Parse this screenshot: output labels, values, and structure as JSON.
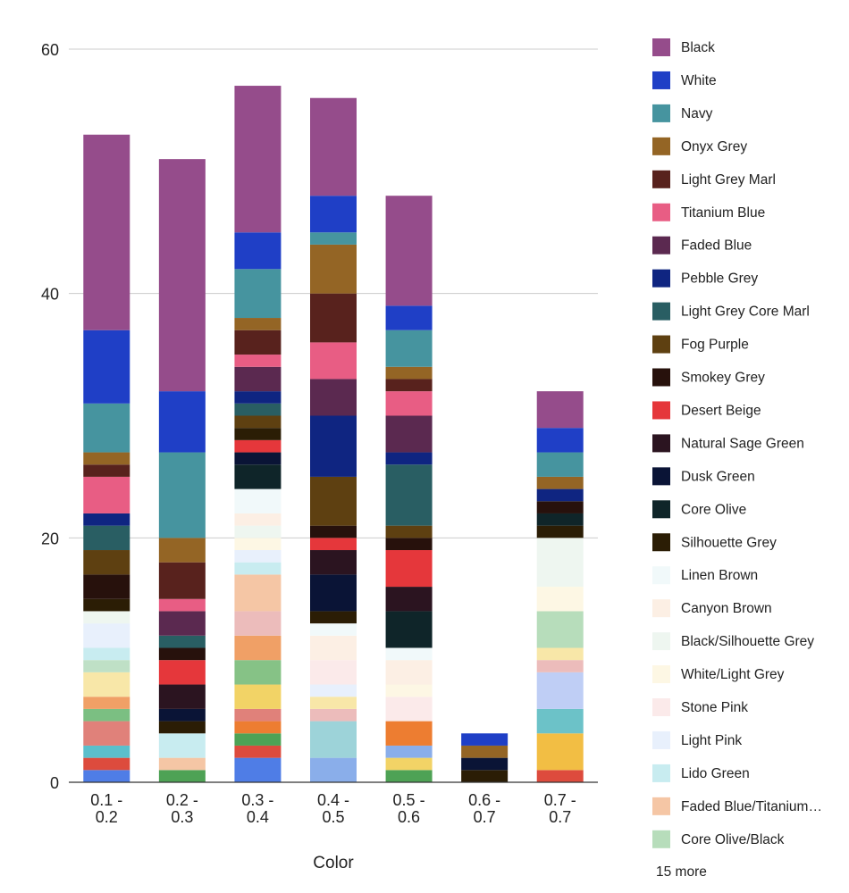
{
  "chart_data": {
    "type": "bar",
    "stacked": true,
    "xlabel": "Color",
    "ylabel": "",
    "ylim": [
      0,
      60
    ],
    "yticks": [
      0,
      20,
      40,
      60
    ],
    "grid": true,
    "legend_position": "right",
    "categories": [
      [
        "0.1 -",
        "0.2"
      ],
      [
        "0.2 -",
        "0.3"
      ],
      [
        "0.3 -",
        "0.4"
      ],
      [
        "0.4 -",
        "0.5"
      ],
      [
        "0.5 -",
        "0.6"
      ],
      [
        "0.6 -",
        "0.7"
      ],
      [
        "0.7 -",
        "0.7"
      ]
    ],
    "segments": [
      [
        {
          "c": "#4f7de6",
          "v": 1
        },
        {
          "c": "#dd4b3d",
          "v": 1
        },
        {
          "c": "#5bbfcc",
          "v": 1
        },
        {
          "c": "#e0817a",
          "v": 2
        },
        {
          "c": "#7bbf82",
          "v": 1
        },
        {
          "c": "#f0a066",
          "v": 1
        },
        {
          "c": "#f8e7a8",
          "v": 2
        },
        {
          "c": "#bfe0c6",
          "v": 1
        },
        {
          "c": "#c8ecf0",
          "v": 1
        },
        {
          "c": "#e8f0fc",
          "v": 2
        },
        {
          "c": "#eef6f0",
          "v": 1
        },
        {
          "c": "#2b1d05",
          "v": 1
        },
        {
          "c": "#27110c",
          "v": 2
        },
        {
          "c": "#5e4011",
          "v": 2
        },
        {
          "c": "#295e63",
          "v": 2
        },
        {
          "c": "#0f2581",
          "v": 1
        },
        {
          "c": "#e85d84",
          "v": 3
        },
        {
          "c": "#58221d",
          "v": 1
        },
        {
          "c": "#946525",
          "v": 1
        },
        {
          "c": "#46949f",
          "v": 4
        },
        {
          "c": "#1f3fc6",
          "v": 6
        },
        {
          "c": "#954c8b",
          "v": 16
        }
      ],
      [
        {
          "c": "#4ea255",
          "v": 1
        },
        {
          "c": "#f5c6a5",
          "v": 1
        },
        {
          "c": "#c8ecf0",
          "v": 2
        },
        {
          "c": "#2b1d05",
          "v": 1
        },
        {
          "c": "#0a1436",
          "v": 1
        },
        {
          "c": "#2b1420",
          "v": 2
        },
        {
          "c": "#e5373b",
          "v": 2
        },
        {
          "c": "#27110c",
          "v": 1
        },
        {
          "c": "#295e63",
          "v": 1
        },
        {
          "c": "#5b2950",
          "v": 2
        },
        {
          "c": "#e85d84",
          "v": 1
        },
        {
          "c": "#58221d",
          "v": 3
        },
        {
          "c": "#946525",
          "v": 2
        },
        {
          "c": "#46949f",
          "v": 7
        },
        {
          "c": "#1f3fc6",
          "v": 5
        },
        {
          "c": "#954c8b",
          "v": 19
        }
      ],
      [
        {
          "c": "#4f7de6",
          "v": 2
        },
        {
          "c": "#dd4b3d",
          "v": 1
        },
        {
          "c": "#4ea255",
          "v": 1
        },
        {
          "c": "#ed7d31",
          "v": 1
        },
        {
          "c": "#e0817a",
          "v": 1
        },
        {
          "c": "#f2d366",
          "v": 2
        },
        {
          "c": "#86c286",
          "v": 2
        },
        {
          "c": "#f0a066",
          "v": 2
        },
        {
          "c": "#ecbcbb",
          "v": 2
        },
        {
          "c": "#f5c6a5",
          "v": 3
        },
        {
          "c": "#c8ecf0",
          "v": 1
        },
        {
          "c": "#e8f0fc",
          "v": 1
        },
        {
          "c": "#fdf7e4",
          "v": 1
        },
        {
          "c": "#eef6f0",
          "v": 1
        },
        {
          "c": "#fcefe4",
          "v": 1
        },
        {
          "c": "#f1f9fa",
          "v": 2
        },
        {
          "c": "#0f2529",
          "v": 2
        },
        {
          "c": "#0a1436",
          "v": 1
        },
        {
          "c": "#e5373b",
          "v": 1
        },
        {
          "c": "#2b1d05",
          "v": 1
        },
        {
          "c": "#5e4011",
          "v": 1
        },
        {
          "c": "#295e63",
          "v": 1
        },
        {
          "c": "#0f2581",
          "v": 1
        },
        {
          "c": "#5b2950",
          "v": 2
        },
        {
          "c": "#e85d84",
          "v": 1
        },
        {
          "c": "#58221d",
          "v": 2
        },
        {
          "c": "#946525",
          "v": 1
        },
        {
          "c": "#46949f",
          "v": 4
        },
        {
          "c": "#1f3fc6",
          "v": 3
        },
        {
          "c": "#954c8b",
          "v": 12
        }
      ],
      [
        {
          "c": "#8aaeea",
          "v": 2
        },
        {
          "c": "#9dd3d9",
          "v": 3
        },
        {
          "c": "#ecbcbb",
          "v": 1
        },
        {
          "c": "#f8e7a8",
          "v": 1
        },
        {
          "c": "#e8f0fc",
          "v": 1
        },
        {
          "c": "#fbeaea",
          "v": 2
        },
        {
          "c": "#fcefe4",
          "v": 2
        },
        {
          "c": "#f1f9fa",
          "v": 1
        },
        {
          "c": "#2b1d05",
          "v": 1
        },
        {
          "c": "#0a1436",
          "v": 3
        },
        {
          "c": "#2b1420",
          "v": 2
        },
        {
          "c": "#e5373b",
          "v": 1
        },
        {
          "c": "#27110c",
          "v": 1
        },
        {
          "c": "#5e4011",
          "v": 4
        },
        {
          "c": "#0f2581",
          "v": 5
        },
        {
          "c": "#5b2950",
          "v": 3
        },
        {
          "c": "#e85d84",
          "v": 3
        },
        {
          "c": "#58221d",
          "v": 4
        },
        {
          "c": "#946525",
          "v": 4
        },
        {
          "c": "#46949f",
          "v": 1
        },
        {
          "c": "#1f3fc6",
          "v": 3
        },
        {
          "c": "#954c8b",
          "v": 8
        }
      ],
      [
        {
          "c": "#4ea255",
          "v": 1
        },
        {
          "c": "#f2d366",
          "v": 1
        },
        {
          "c": "#8aaeea",
          "v": 1
        },
        {
          "c": "#ed7d31",
          "v": 2
        },
        {
          "c": "#fbeaea",
          "v": 2
        },
        {
          "c": "#fdf7e4",
          "v": 1
        },
        {
          "c": "#fcefe4",
          "v": 2
        },
        {
          "c": "#f1f9fa",
          "v": 1
        },
        {
          "c": "#0f2529",
          "v": 3
        },
        {
          "c": "#2b1420",
          "v": 2
        },
        {
          "c": "#e5373b",
          "v": 3
        },
        {
          "c": "#27110c",
          "v": 1
        },
        {
          "c": "#5e4011",
          "v": 1
        },
        {
          "c": "#295e63",
          "v": 5
        },
        {
          "c": "#0f2581",
          "v": 1
        },
        {
          "c": "#5b2950",
          "v": 3
        },
        {
          "c": "#e85d84",
          "v": 2
        },
        {
          "c": "#58221d",
          "v": 1
        },
        {
          "c": "#946525",
          "v": 1
        },
        {
          "c": "#46949f",
          "v": 3
        },
        {
          "c": "#1f3fc6",
          "v": 2
        },
        {
          "c": "#954c8b",
          "v": 9
        }
      ],
      [
        {
          "c": "#2b1d05",
          "v": 1
        },
        {
          "c": "#0a1436",
          "v": 1
        },
        {
          "c": "#946525",
          "v": 1
        },
        {
          "c": "#1f3fc6",
          "v": 1
        }
      ],
      [
        {
          "c": "#dd4b3d",
          "v": 1
        },
        {
          "c": "#f2be44",
          "v": 3
        },
        {
          "c": "#6cc2c8",
          "v": 2
        },
        {
          "c": "#bfcef5",
          "v": 3
        },
        {
          "c": "#ecbcbb",
          "v": 1
        },
        {
          "c": "#f8e7a8",
          "v": 1
        },
        {
          "c": "#b7ddbb",
          "v": 3
        },
        {
          "c": "#fdf7e4",
          "v": 2
        },
        {
          "c": "#eef6f0",
          "v": 4
        },
        {
          "c": "#2b1d05",
          "v": 1
        },
        {
          "c": "#0f2529",
          "v": 1
        },
        {
          "c": "#27110c",
          "v": 1
        },
        {
          "c": "#0f2581",
          "v": 1
        },
        {
          "c": "#946525",
          "v": 1
        },
        {
          "c": "#46949f",
          "v": 2
        },
        {
          "c": "#1f3fc6",
          "v": 2
        },
        {
          "c": "#954c8b",
          "v": 3
        }
      ]
    ],
    "legend": [
      {
        "label": "Black",
        "color": "#954c8b"
      },
      {
        "label": "White",
        "color": "#1f3fc6"
      },
      {
        "label": "Navy",
        "color": "#46949f"
      },
      {
        "label": "Onyx Grey",
        "color": "#946525"
      },
      {
        "label": "Light Grey Marl",
        "color": "#58221d"
      },
      {
        "label": "Titanium Blue",
        "color": "#e85d84"
      },
      {
        "label": "Faded Blue",
        "color": "#5b2950"
      },
      {
        "label": "Pebble Grey",
        "color": "#0f2581"
      },
      {
        "label": "Light Grey Core Marl",
        "color": "#295e63"
      },
      {
        "label": "Fog Purple",
        "color": "#5e4011"
      },
      {
        "label": "Smokey Grey",
        "color": "#27110c"
      },
      {
        "label": "Desert Beige",
        "color": "#e5373b"
      },
      {
        "label": "Natural Sage Green",
        "color": "#2b1420"
      },
      {
        "label": "Dusk Green",
        "color": "#0a1436"
      },
      {
        "label": "Core Olive",
        "color": "#0f2529"
      },
      {
        "label": "Silhouette Grey",
        "color": "#2b1d05"
      },
      {
        "label": "Linen Brown",
        "color": "#f1f9fa"
      },
      {
        "label": "Canyon Brown",
        "color": "#fcefe4"
      },
      {
        "label": "Black/Silhouette Grey",
        "color": "#eef6f0"
      },
      {
        "label": "White/Light Grey",
        "color": "#fdf7e4"
      },
      {
        "label": "Stone Pink",
        "color": "#fbeaea"
      },
      {
        "label": "Light Pink",
        "color": "#e8f0fc"
      },
      {
        "label": "Lido Green",
        "color": "#c8ecf0"
      },
      {
        "label": "Faded Blue/Titanium…",
        "color": "#f5c6a5"
      },
      {
        "label": "Core Olive/Black",
        "color": "#b7ddbb"
      }
    ],
    "legend_more": "15 more"
  }
}
